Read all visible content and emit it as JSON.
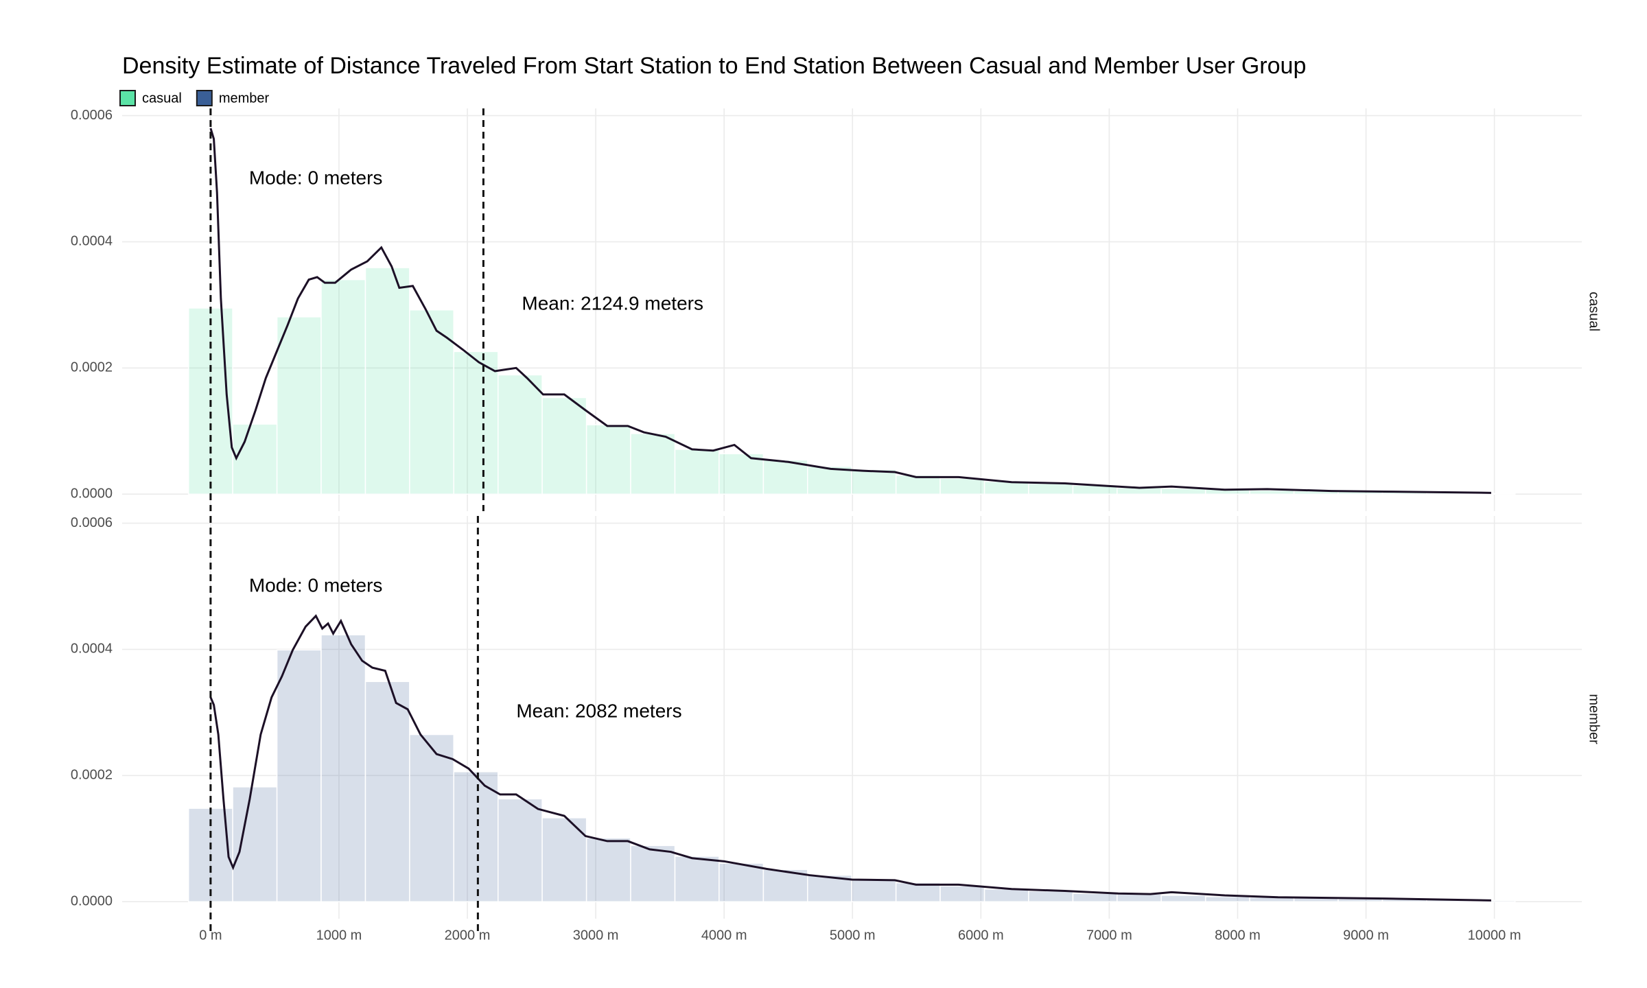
{
  "chart_data": {
    "type": "histogram",
    "title": "Density Estimate of Distance Traveled From Start Station to End Station Between Casual and Member User Group",
    "legend": "top-left",
    "grid": true,
    "fill_opacity": 0.2,
    "line_color": "#1c1026",
    "xlim": [
      -689,
      10681
    ],
    "xticks": [
      {
        "value": 0,
        "label": "0 m"
      },
      {
        "value": 1000,
        "label": "1000 m"
      },
      {
        "value": 2000,
        "label": "2000 m"
      },
      {
        "value": 3000,
        "label": "3000 m"
      },
      {
        "value": 4000,
        "label": "4000 m"
      },
      {
        "value": 5000,
        "label": "5000 m"
      },
      {
        "value": 6000,
        "label": "6000 m"
      },
      {
        "value": 7000,
        "label": "7000 m"
      },
      {
        "value": 8000,
        "label": "8000 m"
      },
      {
        "value": 9000,
        "label": "9000 m"
      },
      {
        "value": 10000,
        "label": "10000 m"
      }
    ],
    "ylim": [
      -2.7e-05,
      0.000606
    ],
    "yticks": [
      {
        "value": 0,
        "label": "0.0000"
      },
      0.0002,
      0.0004,
      0.0006
    ],
    "bins": [
      -172,
      172,
      517,
      861,
      1206,
      1550,
      1894,
      2239,
      2583,
      2928,
      3272,
      3617,
      3961,
      4306,
      4650,
      4994,
      5339,
      5683,
      6028,
      6372,
      6717,
      7061,
      7405,
      7750,
      8094,
      8439,
      8783,
      9128,
      9472,
      9817,
      10161
    ],
    "series": [
      {
        "name": "casual",
        "color": "#5be3a6",
        "values": [
          0.000295,
          0.000111,
          0.000281,
          0.00034,
          0.000359,
          0.000292,
          0.000226,
          0.000189,
          0.000153,
          0.00011,
          9.6e-05,
          7.1e-05,
          6.4e-05,
          5.4e-05,
          4.4e-05,
          3.9e-05,
          3e-05,
          2.5e-05,
          2e-05,
          1.7e-05,
          1.4e-05,
          1e-05,
          9e-06,
          8e-06,
          6e-06,
          5e-06,
          4e-06,
          3e-06,
          2e-06,
          1e-06
        ],
        "density": {
          "x": [
            0,
            25,
            50,
            80,
            125,
            165,
            200,
            265,
            350,
            430,
            515,
            600,
            680,
            765,
            830,
            890,
            970,
            1095,
            1220,
            1330,
            1410,
            1470,
            1575,
            1675,
            1760,
            1840,
            1965,
            2090,
            2215,
            2380,
            2465,
            2590,
            2755,
            2920,
            3090,
            3250,
            3375,
            3545,
            3750,
            3915,
            4080,
            4210,
            4500,
            4830,
            5080,
            5330,
            5495,
            5825,
            6240,
            6655,
            6985,
            7235,
            7485,
            7900,
            8230,
            8730,
            9145,
            9560,
            9975
          ],
          "values": [
            0.00058,
            0.000563,
            0.000478,
            0.00031,
            0.000158,
            7.4e-05,
            5.7e-05,
            8.3e-05,
            0.000133,
            0.000184,
            0.000226,
            0.000268,
            0.00031,
            0.00034,
            0.000344,
            0.000335,
            0.000335,
            0.000356,
            0.000369,
            0.000391,
            0.000361,
            0.000327,
            0.00033,
            0.000293,
            0.000259,
            0.000248,
            0.000229,
            0.000209,
            0.000195,
            0.0002,
            0.000184,
            0.000158,
            0.000158,
            0.000133,
            0.000108,
            0.000108,
            9.8e-05,
            9.1e-05,
            7.1e-05,
            6.9e-05,
            7.8e-05,
            5.7e-05,
            5.1e-05,
            4e-05,
            3.7e-05,
            3.5e-05,
            2.7e-05,
            2.7e-05,
            1.9e-05,
            1.7e-05,
            1.3e-05,
            1e-05,
            1.2e-05,
            7e-06,
            8e-06,
            5e-06,
            4e-06,
            3e-06,
            2e-06
          ]
        },
        "vlines": [
          {
            "value": 0,
            "label": "Mode: 0 meters"
          },
          {
            "value": 2124.9,
            "label": "Mean: 2124.9 meters"
          }
        ]
      },
      {
        "name": "member",
        "color": "#3a5f97",
        "values": [
          0.000148,
          0.000182,
          0.000399,
          0.000423,
          0.000349,
          0.000265,
          0.000206,
          0.000163,
          0.000133,
          0.000101,
          8.9e-05,
          7.2e-05,
          6.1e-05,
          5.1e-05,
          4.2e-05,
          3.5e-05,
          3e-05,
          2.5e-05,
          2e-05,
          1.7e-05,
          1.3e-05,
          1.2e-05,
          1e-05,
          8e-06,
          7e-06,
          6e-06,
          5e-06,
          4e-06,
          3e-06,
          2e-06
        ],
        "density": {
          "x": [
            0,
            25,
            60,
            100,
            140,
            175,
            225,
            305,
            390,
            475,
            555,
            640,
            740,
            820,
            870,
            915,
            955,
            1015,
            1095,
            1180,
            1260,
            1360,
            1445,
            1535,
            1635,
            1760,
            1885,
            2010,
            2135,
            2255,
            2380,
            2550,
            2755,
            2920,
            3090,
            3250,
            3420,
            3585,
            3750,
            4000,
            4330,
            4665,
            4995,
            5330,
            5495,
            5825,
            6240,
            6655,
            7070,
            7320,
            7485,
            7900,
            8315,
            9145,
            9975
          ],
          "values": [
            0.000324,
            0.000312,
            0.000265,
            0.000163,
            7.1e-05,
            5.4e-05,
            7.9e-05,
            0.000163,
            0.000265,
            0.000324,
            0.000357,
            0.000399,
            0.000436,
            0.000453,
            0.000433,
            0.000441,
            0.000425,
            0.000445,
            0.000408,
            0.000382,
            0.000371,
            0.000366,
            0.000315,
            0.000305,
            0.000265,
            0.000234,
            0.000226,
            0.000211,
            0.000184,
            0.00017,
            0.00017,
            0.000147,
            0.000136,
            0.000104,
            9.6e-05,
            9.6e-05,
            8.3e-05,
            7.9e-05,
            6.9e-05,
            6.4e-05,
            5.2e-05,
            4.2e-05,
            3.5e-05,
            3.4e-05,
            2.7e-05,
            2.7e-05,
            2e-05,
            1.7e-05,
            1.3e-05,
            1.2e-05,
            1.5e-05,
            1e-05,
            7e-06,
            5e-06,
            2e-06
          ]
        },
        "vlines": [
          {
            "value": 0,
            "label": "Mode: 0 meters"
          },
          {
            "value": 2082,
            "label": "Mean: 2082 meters"
          }
        ]
      }
    ]
  }
}
